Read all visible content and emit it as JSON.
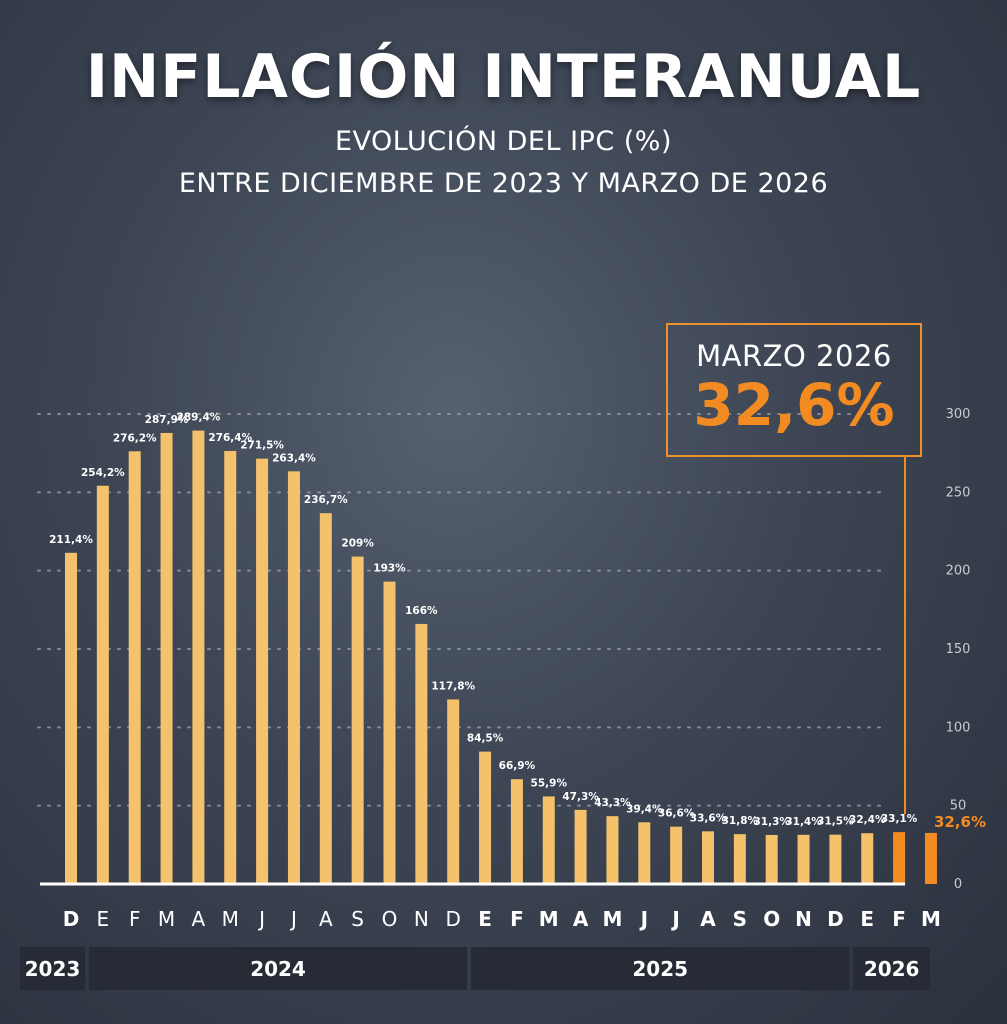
{
  "header": {
    "title": "INFLACIÓN INTERANUAL",
    "subtitle_line1": "EVOLUCIÓN DEL IPC (%)",
    "subtitle_line2": "ENTRE DICIEMBRE DE 2023 Y MARZO DE 2026"
  },
  "highlight": {
    "label": "MARZO 2026",
    "value": "32,6%"
  },
  "colors": {
    "bar": "#f5c26b",
    "highlight_bar": "#f28c22",
    "background": "#3d4554"
  },
  "chart_data": {
    "type": "bar",
    "title": "INFLACIÓN INTERANUAL",
    "ylim": [
      0,
      300
    ],
    "yticks": [
      0,
      50,
      100,
      150,
      200,
      250,
      300
    ],
    "grid": true,
    "categories": [
      "D",
      "E",
      "F",
      "M",
      "A",
      "M",
      "J",
      "J",
      "A",
      "S",
      "O",
      "N",
      "D",
      "E",
      "F",
      "M",
      "A",
      "M",
      "J",
      "J",
      "A",
      "S",
      "O",
      "N",
      "D",
      "E",
      "F",
      "M"
    ],
    "bold_categories": [
      0,
      13,
      14,
      15,
      16,
      17,
      18,
      19,
      20,
      21,
      22,
      23,
      24,
      25,
      26,
      27
    ],
    "values": [
      211.4,
      254.2,
      276.2,
      287.9,
      289.4,
      276.4,
      271.5,
      263.4,
      236.7,
      209,
      193,
      166,
      117.8,
      84.5,
      66.9,
      55.9,
      47.3,
      43.3,
      39.4,
      36.6,
      33.6,
      31.8,
      31.3,
      31.4,
      31.5,
      32.4,
      33.1,
      32.6
    ],
    "value_labels": [
      "211,4%",
      "254,2%",
      "276,2%",
      "287,9%",
      "289,4%",
      "276,4%",
      "271,5%",
      "263,4%",
      "236,7%",
      "209%",
      "193%",
      "166%",
      "117,8%",
      "84,5%",
      "66,9%",
      "55,9%",
      "47,3%",
      "43,3%",
      "39,4%",
      "36,6%",
      "33,6%",
      "31,8%",
      "31,3%",
      "31,4%",
      "31,5%",
      "32,4%",
      "33,1%",
      "32,6%"
    ],
    "highlighted_indices": [
      26,
      27
    ],
    "years": [
      {
        "label": "2023",
        "from": 0,
        "to": 0
      },
      {
        "label": "2024",
        "from": 1,
        "to": 12
      },
      {
        "label": "2025",
        "from": 13,
        "to": 24
      },
      {
        "label": "2026",
        "from": 25,
        "to": 27
      }
    ]
  }
}
